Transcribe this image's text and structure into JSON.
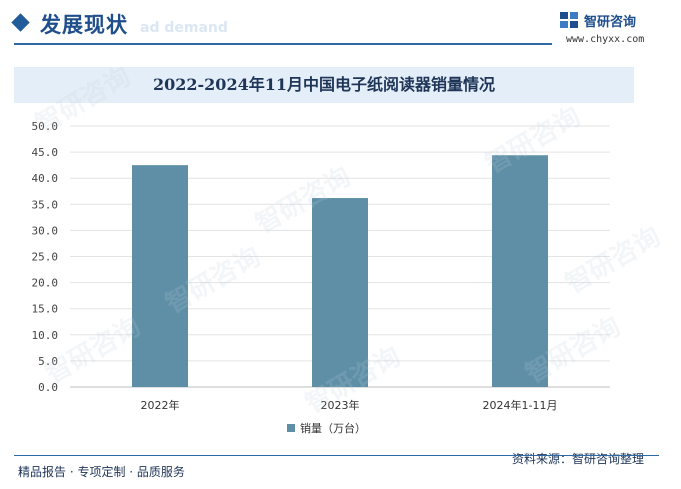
{
  "header": {
    "section_title": "发展现状",
    "section_ghost": "ad demand",
    "logo_text": "智研咨询",
    "site_url": "www.chyxx.com"
  },
  "chart_data": {
    "type": "bar",
    "title": "2022-2024年11月中国电子纸阅读器销量情况",
    "categories": [
      "2022年",
      "2023年",
      "2024年1-11月"
    ],
    "series": [
      {
        "name": "销量（万台）",
        "values": [
          42.5,
          36.2,
          44.4
        ]
      }
    ],
    "ylim": [
      0,
      50
    ],
    "yticks": [
      "0.0",
      "5.0",
      "10.0",
      "15.0",
      "20.0",
      "25.0",
      "30.0",
      "35.0",
      "40.0",
      "45.0",
      "50.0"
    ],
    "grid": true,
    "legend_position": "bottom",
    "bar_color": "#5f8fa6"
  },
  "footer": {
    "left": "精品报告 · 专项定制 · 品质服务",
    "right": "资料来源：智研咨询整理"
  },
  "watermark": "智研咨询"
}
